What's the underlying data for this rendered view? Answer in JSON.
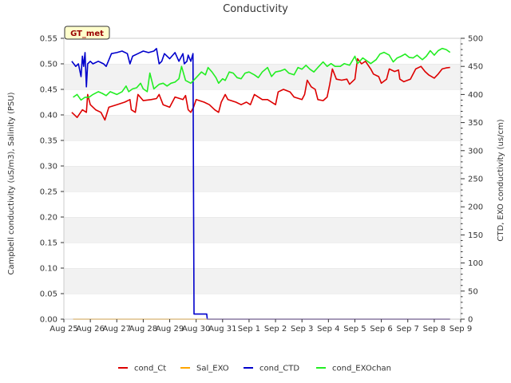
{
  "chart_data": {
    "type": "line",
    "title": "Conductivity",
    "badge": "GT_met",
    "ylabel_left": "Campbell conductivity (uS/m3), Salinity (PSU)",
    "ylabel_right": "CTD, EXO conductivity (us/cm)",
    "xlabel": "",
    "x_ticks": [
      "Aug 25",
      "Aug 26",
      "Aug 27",
      "Aug 28",
      "Aug 29",
      "Aug 30",
      "Aug 31",
      "Sep 1",
      "Sep 2",
      "Sep 3",
      "Sep 4",
      "Sep 5",
      "Sep 6",
      "Sep 7",
      "Sep 8",
      "Sep 9"
    ],
    "xlim_days": [
      0,
      15
    ],
    "ylim_left": [
      0,
      0.55
    ],
    "y_ticks_left": [
      "0.00",
      "0.05",
      "0.10",
      "0.15",
      "0.20",
      "0.25",
      "0.30",
      "0.35",
      "0.40",
      "0.45",
      "0.50",
      "0.55"
    ],
    "ylim_right": [
      0,
      500
    ],
    "y_ticks_right": [
      "0",
      "50",
      "100",
      "150",
      "200",
      "250",
      "300",
      "350",
      "400",
      "450",
      "500"
    ],
    "grid": "horizontal bands",
    "legend_position": "bottom",
    "series": [
      {
        "name": "cond_Ct",
        "color": "#dd0000",
        "axis": "left",
        "points": [
          [
            0.3,
            0.405
          ],
          [
            0.5,
            0.395
          ],
          [
            0.7,
            0.41
          ],
          [
            0.85,
            0.405
          ],
          [
            0.9,
            0.44
          ],
          [
            1.0,
            0.42
          ],
          [
            1.2,
            0.41
          ],
          [
            1.4,
            0.405
          ],
          [
            1.55,
            0.39
          ],
          [
            1.7,
            0.415
          ],
          [
            2.0,
            0.42
          ],
          [
            2.3,
            0.425
          ],
          [
            2.5,
            0.43
          ],
          [
            2.55,
            0.41
          ],
          [
            2.7,
            0.405
          ],
          [
            2.8,
            0.44
          ],
          [
            3.0,
            0.428
          ],
          [
            3.3,
            0.43
          ],
          [
            3.5,
            0.432
          ],
          [
            3.6,
            0.44
          ],
          [
            3.75,
            0.42
          ],
          [
            4.0,
            0.415
          ],
          [
            4.2,
            0.435
          ],
          [
            4.5,
            0.43
          ],
          [
            4.6,
            0.438
          ],
          [
            4.7,
            0.41
          ],
          [
            4.8,
            0.405
          ],
          [
            4.9,
            0.415
          ],
          [
            5.0,
            0.43
          ],
          [
            5.3,
            0.425
          ],
          [
            5.5,
            0.42
          ],
          [
            5.7,
            0.41
          ],
          [
            5.85,
            0.405
          ],
          [
            5.95,
            0.425
          ],
          [
            6.1,
            0.44
          ],
          [
            6.2,
            0.43
          ],
          [
            6.5,
            0.425
          ],
          [
            6.7,
            0.42
          ],
          [
            6.9,
            0.425
          ],
          [
            7.05,
            0.42
          ],
          [
            7.2,
            0.44
          ],
          [
            7.5,
            0.43
          ],
          [
            7.7,
            0.43
          ],
          [
            8.0,
            0.42
          ],
          [
            8.1,
            0.445
          ],
          [
            8.3,
            0.45
          ],
          [
            8.55,
            0.445
          ],
          [
            8.7,
            0.435
          ],
          [
            9.0,
            0.43
          ],
          [
            9.1,
            0.44
          ],
          [
            9.2,
            0.468
          ],
          [
            9.35,
            0.455
          ],
          [
            9.5,
            0.45
          ],
          [
            9.6,
            0.43
          ],
          [
            9.8,
            0.428
          ],
          [
            9.95,
            0.435
          ],
          [
            10.05,
            0.46
          ],
          [
            10.15,
            0.49
          ],
          [
            10.3,
            0.47
          ],
          [
            10.5,
            0.468
          ],
          [
            10.7,
            0.47
          ],
          [
            10.8,
            0.46
          ],
          [
            11.0,
            0.47
          ],
          [
            11.1,
            0.51
          ],
          [
            11.25,
            0.5
          ],
          [
            11.4,
            0.505
          ],
          [
            11.6,
            0.49
          ],
          [
            11.7,
            0.48
          ],
          [
            11.9,
            0.475
          ],
          [
            12.0,
            0.462
          ],
          [
            12.2,
            0.47
          ],
          [
            12.3,
            0.49
          ],
          [
            12.5,
            0.485
          ],
          [
            12.65,
            0.488
          ],
          [
            12.7,
            0.47
          ],
          [
            12.85,
            0.465
          ],
          [
            13.1,
            0.47
          ],
          [
            13.3,
            0.49
          ],
          [
            13.5,
            0.495
          ],
          [
            13.65,
            0.485
          ],
          [
            13.8,
            0.478
          ],
          [
            14.0,
            0.472
          ],
          [
            14.15,
            0.48
          ],
          [
            14.3,
            0.49
          ],
          [
            14.45,
            0.492
          ],
          [
            14.6,
            0.493
          ]
        ]
      },
      {
        "name": "Sal_EXO",
        "color": "#ffa500",
        "axis": "left",
        "points": [
          [
            0.35,
            0.0
          ],
          [
            14.6,
            0.0
          ]
        ]
      },
      {
        "name": "cond_CTD",
        "color": "#0000cc",
        "axis": "left",
        "points": [
          [
            0.3,
            0.505
          ],
          [
            0.45,
            0.495
          ],
          [
            0.55,
            0.5
          ],
          [
            0.65,
            0.475
          ],
          [
            0.7,
            0.515
          ],
          [
            0.75,
            0.495
          ],
          [
            0.8,
            0.522
          ],
          [
            0.85,
            0.455
          ],
          [
            0.9,
            0.5
          ],
          [
            1.0,
            0.505
          ],
          [
            1.1,
            0.5
          ],
          [
            1.3,
            0.505
          ],
          [
            1.5,
            0.5
          ],
          [
            1.6,
            0.495
          ],
          [
            1.8,
            0.52
          ],
          [
            2.0,
            0.522
          ],
          [
            2.2,
            0.525
          ],
          [
            2.4,
            0.52
          ],
          [
            2.5,
            0.5
          ],
          [
            2.6,
            0.515
          ],
          [
            2.8,
            0.52
          ],
          [
            3.0,
            0.525
          ],
          [
            3.2,
            0.522
          ],
          [
            3.4,
            0.525
          ],
          [
            3.5,
            0.53
          ],
          [
            3.6,
            0.5
          ],
          [
            3.7,
            0.505
          ],
          [
            3.8,
            0.52
          ],
          [
            4.0,
            0.51
          ],
          [
            4.2,
            0.522
          ],
          [
            4.35,
            0.505
          ],
          [
            4.5,
            0.52
          ],
          [
            4.55,
            0.5
          ],
          [
            4.65,
            0.505
          ],
          [
            4.7,
            0.517
          ],
          [
            4.8,
            0.505
          ],
          [
            4.88,
            0.52
          ],
          [
            4.92,
            0.01
          ],
          [
            5.4,
            0.01
          ],
          [
            5.42,
            0.0
          ],
          [
            14.6,
            0.0
          ]
        ]
      },
      {
        "name": "cond_EXOchan",
        "color": "#22ee22",
        "axis": "right",
        "points": [
          [
            0.35,
            395
          ],
          [
            0.5,
            400
          ],
          [
            0.65,
            390
          ],
          [
            0.8,
            395
          ],
          [
            0.95,
            395
          ],
          [
            1.1,
            400
          ],
          [
            1.3,
            405
          ],
          [
            1.45,
            402
          ],
          [
            1.6,
            398
          ],
          [
            1.75,
            405
          ],
          [
            2.0,
            400
          ],
          [
            2.2,
            405
          ],
          [
            2.35,
            415
          ],
          [
            2.45,
            405
          ],
          [
            2.6,
            410
          ],
          [
            2.75,
            412
          ],
          [
            2.9,
            420
          ],
          [
            3.0,
            410
          ],
          [
            3.15,
            405
          ],
          [
            3.25,
            438
          ],
          [
            3.4,
            410
          ],
          [
            3.6,
            418
          ],
          [
            3.75,
            420
          ],
          [
            3.9,
            415
          ],
          [
            4.05,
            420
          ],
          [
            4.2,
            422
          ],
          [
            4.35,
            428
          ],
          [
            4.45,
            450
          ],
          [
            4.6,
            425
          ],
          [
            4.8,
            420
          ],
          [
            5.0,
            430
          ],
          [
            5.2,
            440
          ],
          [
            5.35,
            435
          ],
          [
            5.45,
            448
          ],
          [
            5.6,
            440
          ],
          [
            5.75,
            430
          ],
          [
            5.85,
            420
          ],
          [
            6.0,
            428
          ],
          [
            6.1,
            425
          ],
          [
            6.25,
            440
          ],
          [
            6.4,
            438
          ],
          [
            6.55,
            430
          ],
          [
            6.7,
            428
          ],
          [
            6.85,
            438
          ],
          [
            7.0,
            440
          ],
          [
            7.2,
            435
          ],
          [
            7.35,
            430
          ],
          [
            7.5,
            440
          ],
          [
            7.7,
            448
          ],
          [
            7.85,
            432
          ],
          [
            8.0,
            440
          ],
          [
            8.2,
            442
          ],
          [
            8.35,
            445
          ],
          [
            8.5,
            438
          ],
          [
            8.7,
            435
          ],
          [
            8.85,
            448
          ],
          [
            9.0,
            445
          ],
          [
            9.15,
            452
          ],
          [
            9.3,
            445
          ],
          [
            9.45,
            440
          ],
          [
            9.6,
            448
          ],
          [
            9.8,
            458
          ],
          [
            9.95,
            450
          ],
          [
            10.1,
            455
          ],
          [
            10.25,
            450
          ],
          [
            10.45,
            450
          ],
          [
            10.6,
            455
          ],
          [
            10.8,
            452
          ],
          [
            10.9,
            460
          ],
          [
            11.0,
            468
          ],
          [
            11.1,
            455
          ],
          [
            11.3,
            465
          ],
          [
            11.45,
            460
          ],
          [
            11.6,
            455
          ],
          [
            11.8,
            462
          ],
          [
            11.95,
            472
          ],
          [
            12.1,
            475
          ],
          [
            12.3,
            470
          ],
          [
            12.45,
            458
          ],
          [
            12.6,
            465
          ],
          [
            12.75,
            468
          ],
          [
            12.9,
            472
          ],
          [
            13.05,
            466
          ],
          [
            13.2,
            465
          ],
          [
            13.35,
            470
          ],
          [
            13.55,
            462
          ],
          [
            13.7,
            468
          ],
          [
            13.85,
            478
          ],
          [
            14.0,
            470
          ],
          [
            14.15,
            478
          ],
          [
            14.3,
            482
          ],
          [
            14.45,
            480
          ],
          [
            14.6,
            475
          ]
        ]
      }
    ]
  }
}
